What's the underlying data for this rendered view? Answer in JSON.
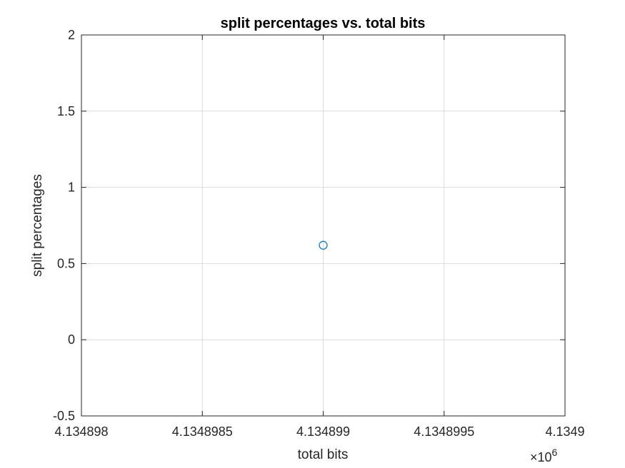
{
  "chart_data": {
    "type": "scatter",
    "title": "split percentages vs. total bits",
    "xlabel": "total bits",
    "ylabel": "split percentages",
    "x_exponent_label": "×10",
    "x_exponent_power": "6",
    "xlim": [
      4.134898,
      4.1349
    ],
    "ylim": [
      -0.5,
      2
    ],
    "x_ticks": [
      4.134898,
      4.1348985,
      4.134899,
      4.1348995,
      4.1349
    ],
    "x_tick_labels": [
      "4.134898",
      "4.1348985",
      "4.134899",
      "4.1348995",
      "4.1349"
    ],
    "y_ticks": [
      -0.5,
      0,
      0.5,
      1,
      1.5,
      2
    ],
    "y_tick_labels": [
      "-0.5",
      "0",
      "0.5",
      "1",
      "1.5",
      "2"
    ],
    "grid": true,
    "marker": "circle",
    "series": [
      {
        "color": "#0072BD",
        "points": [
          {
            "x": 4.134899,
            "y": 0.62
          }
        ]
      }
    ]
  }
}
